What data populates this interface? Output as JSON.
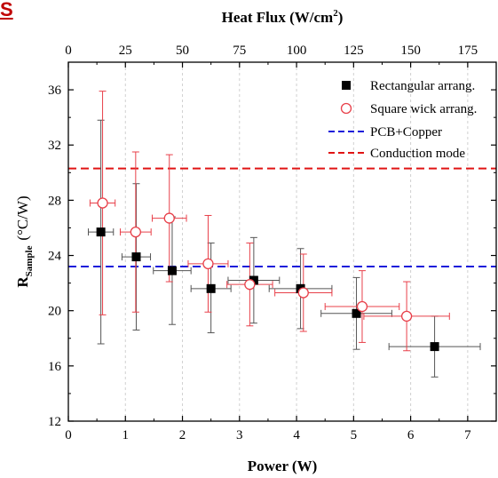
{
  "corner_text": "S",
  "chart_data": {
    "type": "scatter",
    "xlabel": "Power (W)",
    "top_xlabel": "Heat Flux (W/cm",
    "top_xlabel_sup": "2",
    "top_xlabel_suffix": ")",
    "ylabel_main": "R",
    "ylabel_sub": "Sample",
    "ylabel_unit": "(°C/W)",
    "xlim": [
      0,
      7.5
    ],
    "ylim": [
      12,
      38
    ],
    "x_ticks": [
      "0",
      "1",
      "2",
      "3",
      "4",
      "5",
      "6",
      "7"
    ],
    "y_ticks": [
      "12",
      "16",
      "20",
      "24",
      "28",
      "32",
      "36"
    ],
    "top_xlim": [
      0,
      187.5
    ],
    "top_ticks": [
      "0",
      "25",
      "50",
      "75",
      "100",
      "125",
      "150",
      "175"
    ],
    "grid": "vertical dashed",
    "legend_position": "top-right",
    "series": [
      {
        "name": "Rectangular arrang.",
        "marker": "filled-square",
        "color": "#000000",
        "errorbar_color": "#555555",
        "points": [
          {
            "x": 0.57,
            "y": 25.7,
            "xerr": 0.22,
            "yerr_low": 8.1,
            "yerr_high": 8.1
          },
          {
            "x": 1.19,
            "y": 23.9,
            "xerr": 0.25,
            "yerr_low": 5.3,
            "yerr_high": 5.3
          },
          {
            "x": 1.82,
            "y": 22.9,
            "xerr": 0.33,
            "yerr_low": 3.9,
            "yerr_high": 3.9
          },
          {
            "x": 2.5,
            "y": 21.6,
            "xerr": 0.35,
            "yerr_low": 3.2,
            "yerr_high": 3.3
          },
          {
            "x": 3.25,
            "y": 22.2,
            "xerr": 0.45,
            "yerr_low": 3.1,
            "yerr_high": 3.1
          },
          {
            "x": 4.07,
            "y": 21.6,
            "xerr": 0.55,
            "yerr_low": 2.9,
            "yerr_high": 2.9
          },
          {
            "x": 5.05,
            "y": 19.8,
            "xerr": 0.62,
            "yerr_low": 2.6,
            "yerr_high": 2.6
          },
          {
            "x": 6.42,
            "y": 17.4,
            "xerr": 0.8,
            "yerr_low": 2.2,
            "yerr_high": 2.2
          }
        ]
      },
      {
        "name": "Square wick arrang.",
        "marker": "open-circle",
        "color": "#e8404a",
        "errorbar_color": "#e8404a",
        "points": [
          {
            "x": 0.6,
            "y": 27.8,
            "xerr": 0.22,
            "yerr_low": 8.1,
            "yerr_high": 8.1
          },
          {
            "x": 1.18,
            "y": 25.7,
            "xerr": 0.27,
            "yerr_low": 5.8,
            "yerr_high": 5.8
          },
          {
            "x": 1.77,
            "y": 26.7,
            "xerr": 0.3,
            "yerr_low": 4.6,
            "yerr_high": 4.6
          },
          {
            "x": 2.45,
            "y": 23.4,
            "xerr": 0.35,
            "yerr_low": 3.5,
            "yerr_high": 3.5
          },
          {
            "x": 3.18,
            "y": 21.9,
            "xerr": 0.4,
            "yerr_low": 3.0,
            "yerr_high": 3.0
          },
          {
            "x": 4.12,
            "y": 21.3,
            "xerr": 0.5,
            "yerr_low": 2.8,
            "yerr_high": 2.8
          },
          {
            "x": 5.15,
            "y": 20.3,
            "xerr": 0.65,
            "yerr_low": 2.6,
            "yerr_high": 2.6
          },
          {
            "x": 5.93,
            "y": 19.6,
            "xerr": 0.75,
            "yerr_low": 2.5,
            "yerr_high": 2.5
          }
        ]
      }
    ],
    "reference_lines": [
      {
        "name": "PCB+Copper",
        "y": 23.2,
        "color": "#1a1adb",
        "style": "dashed"
      },
      {
        "name": "Conduction mode",
        "y": 30.3,
        "color": "#e01414",
        "style": "dashed"
      }
    ]
  }
}
